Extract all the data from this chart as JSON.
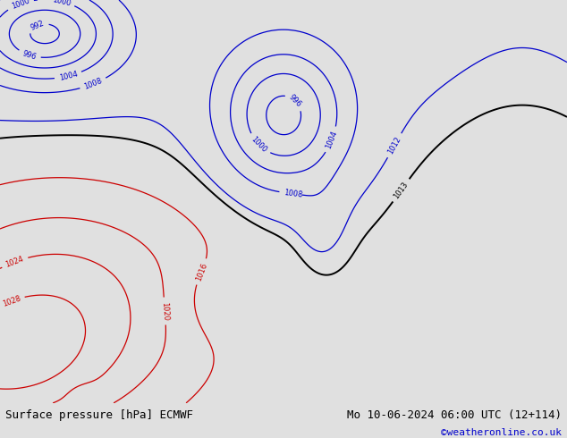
{
  "title_left": "Surface pressure [hPa] ECMWF",
  "title_right": "Mo 10-06-2024 06:00 UTC (12+114)",
  "credit": "©weatheronline.co.uk",
  "bg_ocean": "#c8c8c8",
  "bg_land": "#c8e6a0",
  "bg_bottom": "#e0e0e0",
  "coast_color": "#808080",
  "text_color_left": "#000000",
  "text_color_right": "#000000",
  "text_color_credit": "#0000cc",
  "figsize": [
    6.34,
    4.9
  ],
  "dpi": 100,
  "contour_black_color": "#000000",
  "contour_red_color": "#cc0000",
  "contour_blue_color": "#0000cc",
  "label_fontsize": 6,
  "title_fontsize": 9,
  "credit_fontsize": 8,
  "lon_min": -28,
  "lon_max": 48,
  "lat_min": 28,
  "lat_max": 76
}
